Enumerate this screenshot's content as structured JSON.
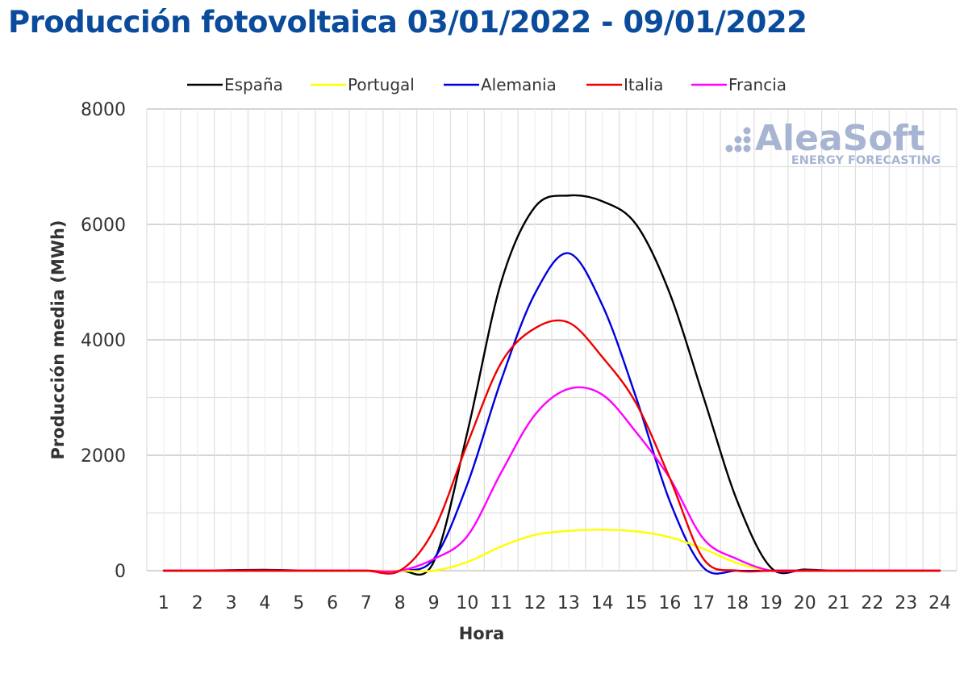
{
  "chart_data": {
    "type": "line",
    "title": "Producción fotovoltaica 03/01/2022 - 09/01/2022",
    "xlabel": "Hora",
    "ylabel": "Producción media (MWh)",
    "x": [
      1,
      2,
      3,
      4,
      5,
      6,
      7,
      8,
      9,
      10,
      11,
      12,
      13,
      14,
      15,
      16,
      17,
      18,
      19,
      20,
      21,
      22,
      23,
      24
    ],
    "ylim": [
      0,
      8000
    ],
    "yticks": [
      0,
      2000,
      4000,
      6000,
      8000
    ],
    "grid": true,
    "legend_position": "top",
    "series": [
      {
        "name": "España",
        "color": "#000000",
        "values": [
          0,
          0,
          10,
          15,
          5,
          0,
          0,
          0,
          150,
          2400,
          5000,
          6300,
          6500,
          6400,
          6000,
          4800,
          3000,
          1200,
          50,
          20,
          0,
          0,
          0,
          0
        ]
      },
      {
        "name": "Portugal",
        "color": "#ffff00",
        "values": [
          0,
          0,
          0,
          0,
          0,
          0,
          0,
          0,
          0,
          150,
          420,
          620,
          690,
          710,
          680,
          580,
          380,
          130,
          0,
          0,
          0,
          0,
          0,
          0
        ]
      },
      {
        "name": "Alemania",
        "color": "#0000dd",
        "values": [
          0,
          0,
          0,
          0,
          0,
          0,
          0,
          0,
          200,
          1500,
          3300,
          4800,
          5500,
          4600,
          3000,
          1200,
          50,
          0,
          0,
          0,
          0,
          0,
          0,
          0
        ]
      },
      {
        "name": "Italia",
        "color": "#ee0000",
        "values": [
          0,
          0,
          0,
          0,
          0,
          0,
          0,
          0,
          700,
          2200,
          3600,
          4200,
          4300,
          3700,
          2900,
          1600,
          200,
          0,
          0,
          0,
          0,
          0,
          0,
          0
        ]
      },
      {
        "name": "Francia",
        "color": "#ff00ff",
        "values": [
          0,
          0,
          0,
          0,
          0,
          0,
          0,
          0,
          200,
          600,
          1700,
          2700,
          3150,
          3050,
          2400,
          1600,
          550,
          200,
          0,
          0,
          0,
          0,
          0,
          0
        ]
      }
    ]
  },
  "watermark": {
    "brand": "AleaSoft",
    "tagline": "ENERGY FORECASTING",
    "color": "#a7b5d3"
  }
}
